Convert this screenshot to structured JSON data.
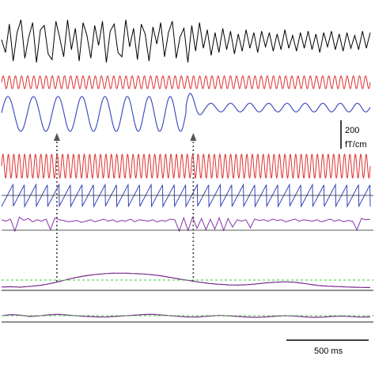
{
  "chart_data": {
    "type": "line",
    "title": "",
    "series": [
      {
        "color": "#000000",
        "values": [
          0.1,
          -0.8,
          1.2,
          -1.4,
          0.6,
          1.5,
          -1.2,
          0.3,
          1.3,
          -1.5,
          0.8,
          1.1,
          -0.9,
          -1.3,
          1.4,
          0.2,
          -1.1,
          1.5,
          -0.6,
          0.9,
          -1.4,
          1.3,
          0.4,
          -1.2,
          1.1,
          -0.3,
          1.4,
          -1.5,
          0.7,
          1.2,
          -0.8,
          -1.1,
          1.5,
          -0.4,
          0.9,
          -1.3,
          1.2,
          0.5,
          -1.4,
          1.0,
          -0.2,
          1.3,
          -1.1,
          0.6,
          1.4,
          -1.2,
          0.3,
          0.9,
          -1.5,
          1.1,
          -0.7,
          1.3,
          -0.5,
          0.8,
          -1.0,
          0.6,
          -0.8,
          0.9,
          -0.6,
          0.7,
          -0.9,
          0.5,
          -0.7,
          0.8,
          -0.5,
          0.6,
          -0.8,
          0.7,
          -0.4,
          0.6,
          -0.7,
          0.5,
          -0.6,
          0.8,
          -0.5,
          0.4,
          -0.7,
          0.6,
          -0.5,
          0.7,
          -0.6,
          0.5,
          -0.8,
          0.6,
          -0.4,
          0.7,
          -0.6,
          0.5,
          -0.7,
          0.6,
          -0.5,
          0.4,
          -0.6,
          0.7,
          -0.5,
          0.6
        ]
      },
      {
        "color": "#e03030",
        "amplitude": 1.0,
        "cycles": 60
      },
      {
        "color": "#3344bb",
        "amplitude_start": 1.4,
        "amplitude_end": 0.35,
        "cycles_start": 14,
        "cycles_end": 22
      },
      {
        "color": "#e03030",
        "amplitude": 1.0,
        "cycles": 68
      },
      {
        "color": "#3344bb",
        "shape": "sawtooth",
        "cycles": 32
      },
      {
        "color": "#8833aa",
        "values": [
          0.5,
          0.3,
          0.6,
          -1.2,
          0.9,
          0.4,
          0.7,
          0.2,
          0.5,
          0.3,
          0.6,
          -1.0,
          0.8,
          0.5,
          0.4,
          0.2,
          0.3,
          0.4,
          0.1,
          0.3,
          0.5,
          0.2,
          0.4,
          0.6,
          0.3,
          0.5,
          0.2,
          0.4,
          0.3,
          0.6,
          0.2,
          0.5,
          0.4,
          0.3,
          0.5,
          0.2,
          0.4,
          0.3,
          0.6,
          0.5,
          -1.2,
          0.8,
          -1.1,
          0.9,
          -0.8,
          0.7,
          -1.0,
          0.6,
          -0.9,
          0.8,
          -1.1,
          0.7,
          -0.6,
          0.5,
          0.3,
          0.5,
          -0.7,
          0.6,
          0.4,
          0.5,
          0.3,
          0.6,
          0.4,
          0.5,
          0.2,
          0.4,
          0.6,
          0.3,
          0.5,
          0.4,
          0.3,
          0.5,
          0.2,
          0.4,
          0.6,
          0.3,
          0.5,
          0.2,
          0.4,
          0.3,
          -1.0,
          0.7,
          0.5,
          0.6
        ]
      },
      {
        "color": "#7a2a8c",
        "values": [
          0.05,
          0.06,
          0.04,
          0.08,
          0.12,
          0.2,
          0.3,
          0.42,
          0.52,
          0.6,
          0.66,
          0.7,
          0.72,
          0.72,
          0.7,
          0.68,
          0.64,
          0.58,
          0.5,
          0.42,
          0.35,
          0.28,
          0.22,
          0.18,
          0.15,
          0.14,
          0.16,
          0.2,
          0.25,
          0.28,
          0.3,
          0.28,
          0.22,
          0.15,
          0.1,
          0.08,
          0.06,
          0.04,
          0.03,
          0.02
        ]
      },
      {
        "color": "#7a2a8c",
        "values": [
          0.3,
          0.4,
          0.35,
          0.25,
          0.3,
          0.38,
          0.42,
          0.36,
          0.3,
          0.25,
          0.22,
          0.2,
          0.25,
          0.3,
          0.35,
          0.4,
          0.42,
          0.36,
          0.3,
          0.24,
          0.2,
          0.22,
          0.28,
          0.33,
          0.3,
          0.25,
          0.2,
          0.18,
          0.22,
          0.27,
          0.31,
          0.28,
          0.22,
          0.18,
          0.2,
          0.25,
          0.28,
          0.24,
          0.2,
          0.22
        ]
      }
    ],
    "annotations": [
      {
        "type": "arrow",
        "x_fraction": 0.15
      },
      {
        "type": "arrow",
        "x_fraction": 0.52
      }
    ],
    "scale_bar_y_label": "200\nfT/cm",
    "scale_bar_x_label": "500 ms",
    "xlabel": "",
    "ylabel": ""
  }
}
